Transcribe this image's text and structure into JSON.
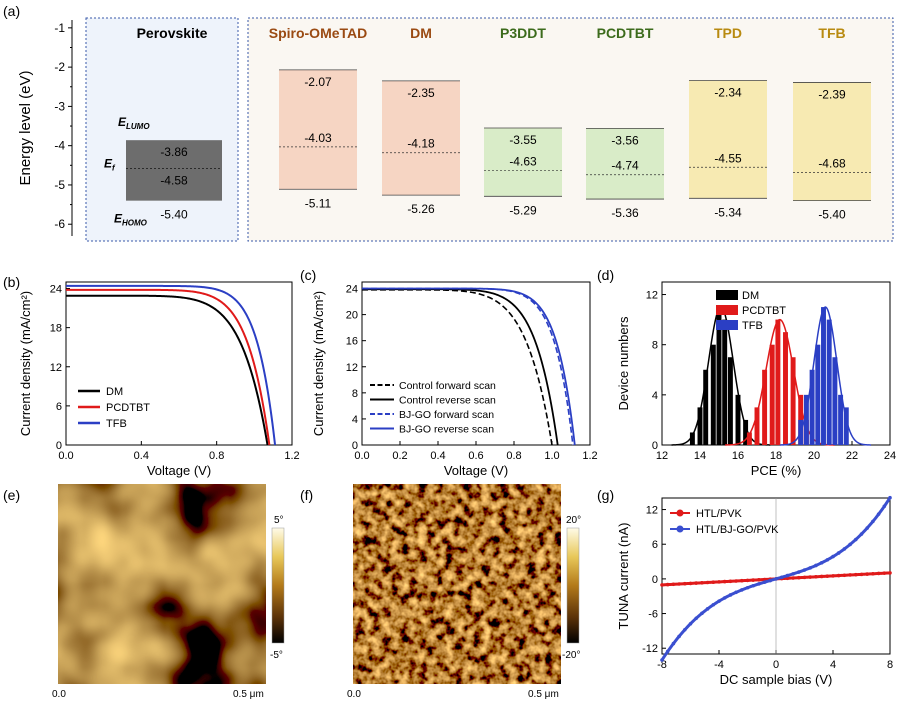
{
  "panel_labels": {
    "a": "(a)",
    "b": "(b)",
    "c": "(c)",
    "d": "(d)",
    "e": "(e)",
    "f": "(f)",
    "g": "(g)"
  },
  "chart_data": [
    {
      "id": "a",
      "type": "bar",
      "ylabel": "Energy level (eV)",
      "ylim": [
        -6.3,
        -0.8
      ],
      "yticks": [
        -1,
        -2,
        -3,
        -4,
        -5,
        -6
      ],
      "perovskite": {
        "name": "Perovskite",
        "lumo": -3.86,
        "fermi": -4.58,
        "homo": -5.4,
        "lumo_label": "E",
        "lumo_sub": "LUMO",
        "fermi_label": "E",
        "fermi_sub": "f",
        "homo_label": "E",
        "homo_sub": "HOMO",
        "color": "#6d6d6d"
      },
      "materials": [
        {
          "name": "Spiro-OMeTAD",
          "lumo": -2.07,
          "fermi": -4.03,
          "homo": -5.11,
          "color": "#f6d5c3",
          "label_color": "#9a4a12"
        },
        {
          "name": "DM",
          "lumo": -2.35,
          "fermi": -4.18,
          "homo": -5.26,
          "color": "#f6d5c3",
          "label_color": "#9a4a12"
        },
        {
          "name": "P3DDT",
          "lumo": -3.55,
          "fermi": -4.63,
          "homo": -5.29,
          "color": "#d9ecc8",
          "label_color": "#3c6b1c"
        },
        {
          "name": "PCDTBT",
          "lumo": -3.56,
          "fermi": -4.74,
          "homo": -5.36,
          "color": "#d9ecc8",
          "label_color": "#3c6b1c"
        },
        {
          "name": "TPD",
          "lumo": -2.34,
          "fermi": -4.55,
          "homo": -5.34,
          "color": "#f7eab2",
          "label_color": "#b88a10"
        },
        {
          "name": "TFB",
          "lumo": -2.39,
          "fermi": -4.68,
          "homo": -5.4,
          "color": "#f7eab2",
          "label_color": "#b88a10"
        }
      ]
    },
    {
      "id": "b",
      "type": "line",
      "xlabel": "Voltage (V)",
      "ylabel": "Current density (mA/cm²)",
      "xlim": [
        0,
        1.2
      ],
      "ylim": [
        0,
        25
      ],
      "xticks": [
        0.0,
        0.4,
        0.8,
        1.2
      ],
      "yticks": [
        0,
        6,
        12,
        18,
        24
      ],
      "legend_position": "bottom-left",
      "series": [
        {
          "name": "DM",
          "color": "#000000",
          "jsc": 22.9,
          "voc": 1.07,
          "knee": 0.8
        },
        {
          "name": "PCDTBT",
          "color": "#e01a1a",
          "jsc": 23.8,
          "voc": 1.08,
          "knee": 0.86
        },
        {
          "name": "TFB",
          "color": "#2b3fc4",
          "jsc": 24.4,
          "voc": 1.11,
          "knee": 0.95
        }
      ]
    },
    {
      "id": "c",
      "type": "line",
      "xlabel": "Voltage (V)",
      "ylabel": "Current density (mA/cm²)",
      "xlim": [
        0,
        1.2
      ],
      "ylim": [
        0,
        25
      ],
      "xticks": [
        0.0,
        0.2,
        0.4,
        0.6,
        0.8,
        1.0,
        1.2
      ],
      "yticks": [
        0,
        4,
        8,
        12,
        16,
        20,
        24
      ],
      "legend_position": "bottom-left",
      "series": [
        {
          "name": "Control forward scan",
          "color": "#000000",
          "dash": true,
          "jsc": 23.8,
          "voc": 1.0,
          "knee": 0.78
        },
        {
          "name": "Control reverse scan",
          "color": "#000000",
          "dash": false,
          "jsc": 23.9,
          "voc": 1.03,
          "knee": 0.84
        },
        {
          "name": "BJ-GO forward scan",
          "color": "#2b3fc4",
          "dash": true,
          "jsc": 24.0,
          "voc": 1.11,
          "knee": 0.95
        },
        {
          "name": "BJ-GO reverse scan",
          "color": "#2b3fc4",
          "dash": false,
          "jsc": 24.0,
          "voc": 1.12,
          "knee": 0.96
        }
      ]
    },
    {
      "id": "d",
      "type": "bar",
      "xlabel": "PCE (%)",
      "ylabel": "Device numbers",
      "xlim": [
        12,
        24
      ],
      "ylim": [
        0,
        13
      ],
      "xticks": [
        12,
        14,
        16,
        18,
        20,
        22,
        24
      ],
      "yticks": [
        0,
        4,
        8,
        12
      ],
      "legend_position": "top-center",
      "series": [
        {
          "name": "DM",
          "color": "#000000",
          "mean": 15.1,
          "sigma": 0.65,
          "peak": 11,
          "bars": [
            [
              13.6,
              1
            ],
            [
              14.0,
              3
            ],
            [
              14.3,
              6
            ],
            [
              14.7,
              8
            ],
            [
              15.0,
              11
            ],
            [
              15.3,
              10
            ],
            [
              15.6,
              7
            ],
            [
              16.0,
              4
            ],
            [
              16.4,
              2
            ]
          ]
        },
        {
          "name": "PCDTBT",
          "color": "#e01a1a",
          "mean": 18.2,
          "sigma": 0.72,
          "peak": 10,
          "bars": [
            [
              16.6,
              1
            ],
            [
              17.0,
              3
            ],
            [
              17.4,
              6
            ],
            [
              17.8,
              8
            ],
            [
              18.1,
              10
            ],
            [
              18.5,
              9
            ],
            [
              18.9,
              7
            ],
            [
              19.3,
              4
            ],
            [
              19.6,
              2
            ]
          ]
        },
        {
          "name": "TFB",
          "color": "#2b3fc4",
          "mean": 20.6,
          "sigma": 0.6,
          "peak": 11,
          "bars": [
            [
              19.3,
              2
            ],
            [
              19.6,
              4
            ],
            [
              19.9,
              6
            ],
            [
              20.2,
              8
            ],
            [
              20.5,
              11
            ],
            [
              20.8,
              10
            ],
            [
              21.1,
              7
            ],
            [
              21.4,
              4
            ],
            [
              21.7,
              3
            ]
          ]
        }
      ]
    },
    {
      "id": "g",
      "type": "line",
      "xlabel": "DC sample bias (V)",
      "ylabel": "TUNA current (nA)",
      "xlim": [
        -8,
        8
      ],
      "ylim": [
        -13,
        14
      ],
      "xticks": [
        -8,
        -4,
        0,
        4,
        8
      ],
      "yticks": [
        -12,
        -6,
        0,
        6,
        12
      ],
      "legend_position": "top-left",
      "series": [
        {
          "name": "HTL/PVK",
          "color": "#e01a1a",
          "slope": 0.13,
          "cubic": 0.0
        },
        {
          "name": "HTL/BJ-GO/PVK",
          "color": "#3a4fd0",
          "slope": 0.7,
          "cubic": 0.0165
        }
      ]
    }
  ],
  "afm": [
    {
      "id": "e",
      "scale_max": "5°",
      "scale_min": "-5°",
      "x_start": "0.0",
      "x_end": "0.5 μm"
    },
    {
      "id": "f",
      "scale_max": "20°",
      "scale_min": "-20°",
      "x_start": "0.0",
      "x_end": "0.5 μm"
    }
  ]
}
